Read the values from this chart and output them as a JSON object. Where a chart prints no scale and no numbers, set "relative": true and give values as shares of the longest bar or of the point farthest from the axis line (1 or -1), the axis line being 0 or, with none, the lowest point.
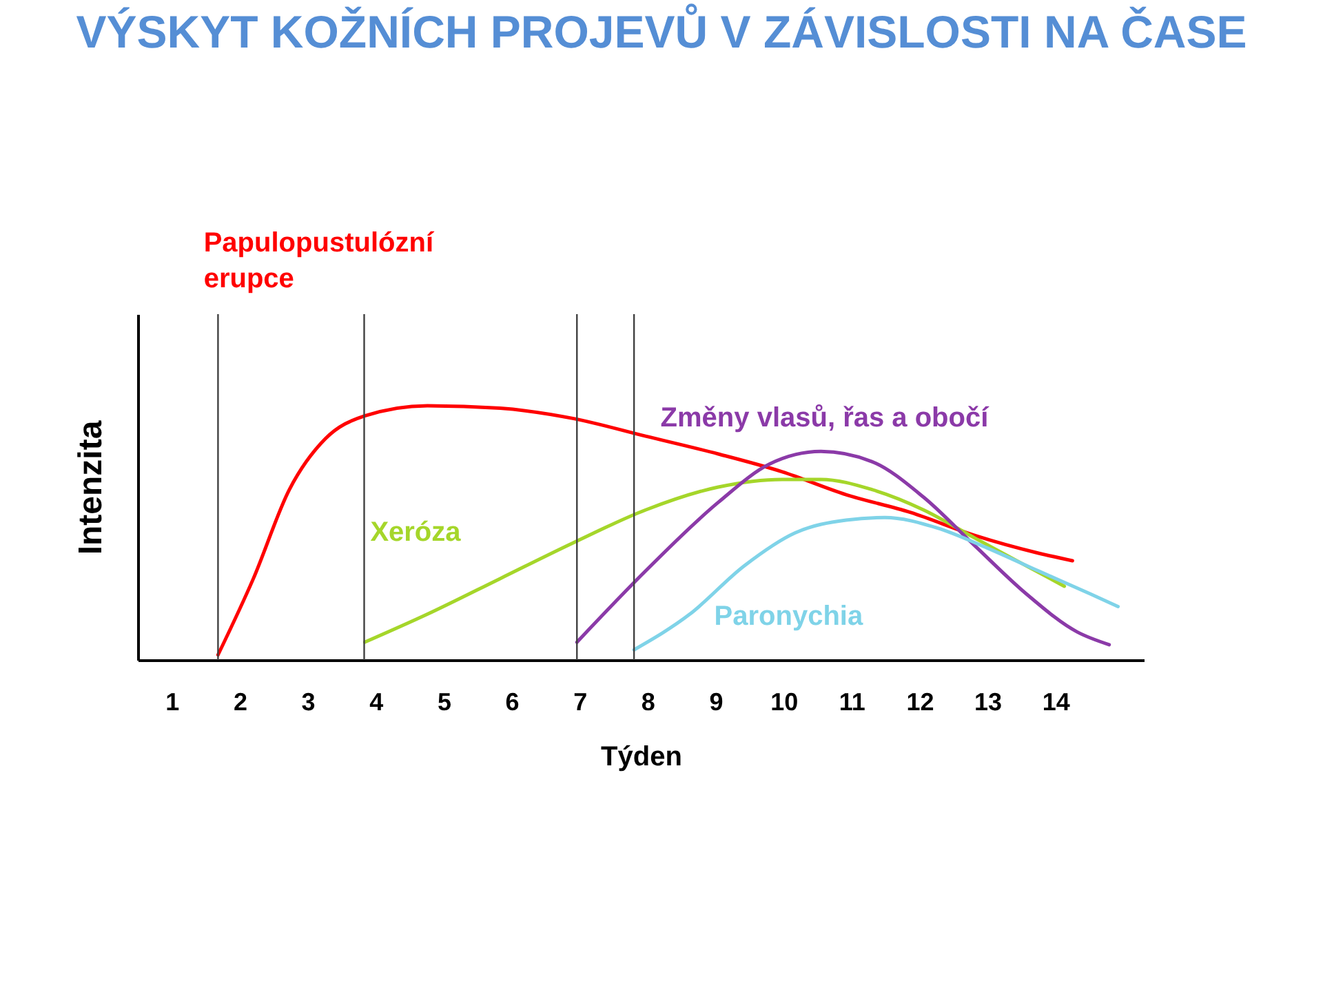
{
  "chart_data": {
    "type": "line",
    "title": "VÝSKYT KOŽNÍCH PROJEVŮ V ZÁVISLOSTI NA ČASE",
    "xlabel": "Týden",
    "ylabel": "Intenzita",
    "relative": true,
    "grid": false,
    "legend": false,
    "marker": "none",
    "line_style": "solid",
    "xlim": [
      0.5,
      15.3
    ],
    "xticks": [
      1,
      2,
      3,
      4,
      5,
      6,
      7,
      8,
      9,
      10,
      11,
      12,
      13,
      14
    ],
    "ref_lines": [
      {
        "axis": "x",
        "value": 1.68,
        "color": "#404040"
      },
      {
        "axis": "x",
        "value": 3.83,
        "color": "#404040"
      },
      {
        "axis": "x",
        "value": 6.96,
        "color": "#404040"
      },
      {
        "axis": "x",
        "value": 7.8,
        "color": "#404040"
      }
    ],
    "series": [
      {
        "name": "Papulopustulózní erupce",
        "color": "#ff0000",
        "x": [
          1.68,
          2.2,
          2.73,
          3.26,
          3.84,
          4.76,
          5.83,
          6.9,
          7.97,
          9.04,
          9.98,
          10.92,
          11.87,
          12.81,
          13.75,
          14.25
        ],
        "values": [
          0.02,
          0.32,
          0.67,
          0.87,
          0.96,
          1.0,
          0.99,
          0.95,
          0.88,
          0.81,
          0.74,
          0.65,
          0.58,
          0.49,
          0.42,
          0.39
        ]
      },
      {
        "name": "Xeróza",
        "color": "#a5d62a",
        "x": [
          3.84,
          4.76,
          5.83,
          6.9,
          7.97,
          9.04,
          9.98,
          10.55,
          11.3,
          12.06,
          12.81,
          13.57,
          14.13
        ],
        "values": [
          0.07,
          0.18,
          0.32,
          0.46,
          0.59,
          0.68,
          0.71,
          0.71,
          0.67,
          0.59,
          0.48,
          0.37,
          0.29
        ]
      },
      {
        "name": "Změny vlasů, řas a obočí",
        "color": "#8b3aa8",
        "x": [
          6.96,
          7.97,
          9.04,
          9.79,
          10.55,
          11.3,
          12.06,
          12.81,
          13.57,
          14.32,
          14.79
        ],
        "values": [
          0.07,
          0.35,
          0.62,
          0.77,
          0.82,
          0.78,
          0.64,
          0.45,
          0.26,
          0.11,
          0.06
        ]
      },
      {
        "name": "Paronychia",
        "color": "#7fd3e8",
        "x": [
          7.8,
          8.62,
          9.42,
          10.17,
          10.92,
          11.49,
          12.25,
          13.0,
          13.75,
          14.51,
          14.92
        ],
        "values": [
          0.04,
          0.18,
          0.37,
          0.5,
          0.55,
          0.56,
          0.52,
          0.44,
          0.35,
          0.26,
          0.21
        ]
      }
    ]
  }
}
